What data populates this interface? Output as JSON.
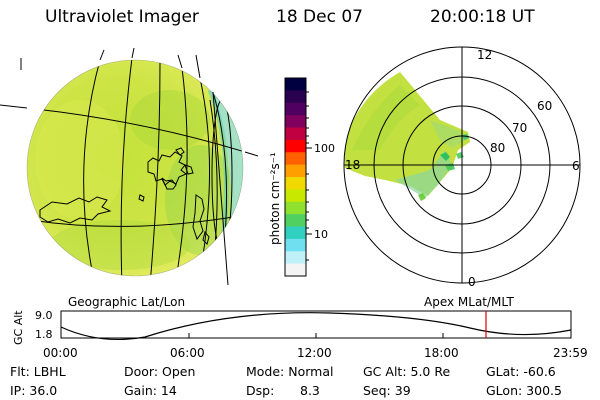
{
  "header": {
    "instrument": "Ultraviolet Imager",
    "date": "18 Dec 07",
    "time": "20:00:18 UT"
  },
  "colorbar": {
    "unit_label": "photon cm⁻²s⁻¹",
    "ticks": [
      "100",
      "10"
    ],
    "colors": [
      "#000040",
      "#2a0050",
      "#500060",
      "#800060",
      "#c00040",
      "#ff0000",
      "#ff6000",
      "#ffa000",
      "#f0d800",
      "#c8e800",
      "#90e030",
      "#50d060",
      "#30d0c0",
      "#70e0f0",
      "#c0f0f8",
      "#f4f4f4"
    ]
  },
  "polar_plot": {
    "labels": {
      "mlt_top": "12",
      "mlt_left": "18",
      "mlt_right": "6",
      "mlt_bottom": "0",
      "lat_60": "60",
      "lat_70": "70",
      "lat_80": "80"
    }
  },
  "projections": {
    "left": "Geographic Lat/Lon",
    "right": "Apex MLat/MLT"
  },
  "altitude_plot": {
    "ylabel": "GC Alt",
    "y_ticks": [
      "9.0",
      "1.8"
    ],
    "x_ticks": [
      "00:00",
      "06:00",
      "12:00",
      "18:00",
      "23:59"
    ],
    "current_marker_hours": 20.0
  },
  "status": {
    "filter": "Flt: LBHL",
    "ip": "IP: 36.0",
    "door": "Door: Open",
    "gain": "Gain: 14",
    "mode": "Mode: Normal",
    "dsp_label": "Dsp:",
    "dsp_value": "8.3",
    "gc_alt": "GC Alt: 5.0 Re",
    "seq": "Seq: 39",
    "glat": "GLat: -60.6",
    "glon": "GLon: 300.5"
  }
}
